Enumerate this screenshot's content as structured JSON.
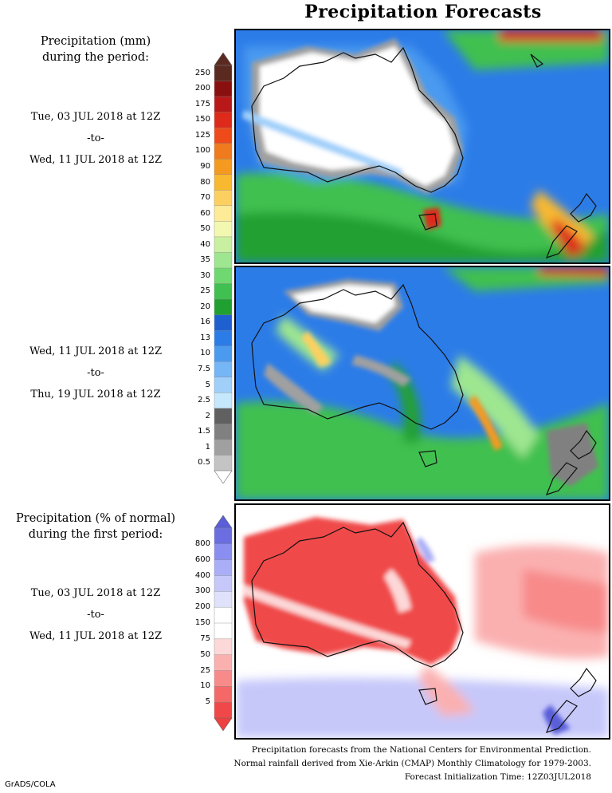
{
  "title": "Precipitation Forecasts",
  "panel1": {
    "heading_line1": "Precipitation (mm)",
    "heading_line2": "during the period:",
    "start": "Tue, 03 JUL 2018 at 12Z",
    "to": "-to-",
    "end": "Wed, 11 JUL 2018 at 12Z"
  },
  "panel2": {
    "start": "Wed, 11 JUL 2018 at 12Z",
    "to": "-to-",
    "end": "Thu, 19 JUL 2018 at 12Z"
  },
  "panel3": {
    "heading_line1": "Precipitation (% of normal)",
    "heading_line2": "during the first period:",
    "start": "Tue, 03 JUL 2018 at 12Z",
    "to": "-to-",
    "end": "Wed, 11 JUL 2018 at 12Z"
  },
  "precip_scale": {
    "labels": [
      "250",
      "200",
      "175",
      "150",
      "125",
      "100",
      "90",
      "80",
      "70",
      "60",
      "50",
      "40",
      "35",
      "30",
      "25",
      "20",
      "16",
      "13",
      "10",
      "7.5",
      "5",
      "2.5",
      "2",
      "1.5",
      "1",
      "0.5"
    ],
    "colors": [
      "#5a2a20",
      "#8a1010",
      "#b81818",
      "#dd2a1a",
      "#ee4a1a",
      "#f07a1e",
      "#f59a20",
      "#f8b830",
      "#fcd060",
      "#fdeb98",
      "#f2f8b0",
      "#c8f0a0",
      "#9ee690",
      "#6fd870",
      "#3fc050",
      "#20a030",
      "#1e60d0",
      "#2c7ce8",
      "#4a9af0",
      "#74b6f6",
      "#a0d0fa",
      "#c6e8fc",
      "#606060",
      "#808080",
      "#a0a0a0",
      "#c4c4c4"
    ],
    "top_arrow_color": "#5a2a20"
  },
  "pct_scale": {
    "labels": [
      "800",
      "600",
      "400",
      "300",
      "200",
      "150",
      "75",
      "50",
      "25",
      "10",
      "5"
    ],
    "colors": [
      "#6a6ee0",
      "#8a8ef0",
      "#aaaef6",
      "#c6c8fa",
      "#e0e2fc",
      "#ffffff",
      "#ffffff",
      "#fdd8d8",
      "#fbb0b0",
      "#f88a8a",
      "#f46868",
      "#f04848"
    ],
    "top_arrow_color": "#5a5ed8",
    "bottom_arrow_color": "#ee4040"
  },
  "credits": {
    "line1": "Precipitation forecasts from the National Centers for Environmental Prediction.",
    "line2": "Normal rainfall derived from Xie-Arkin (CMAP) Monthly Climatology for 1979-2003.",
    "line3": "Forecast Initialization Time: 12Z03JUL2018"
  },
  "footer": "GrADS/COLA"
}
